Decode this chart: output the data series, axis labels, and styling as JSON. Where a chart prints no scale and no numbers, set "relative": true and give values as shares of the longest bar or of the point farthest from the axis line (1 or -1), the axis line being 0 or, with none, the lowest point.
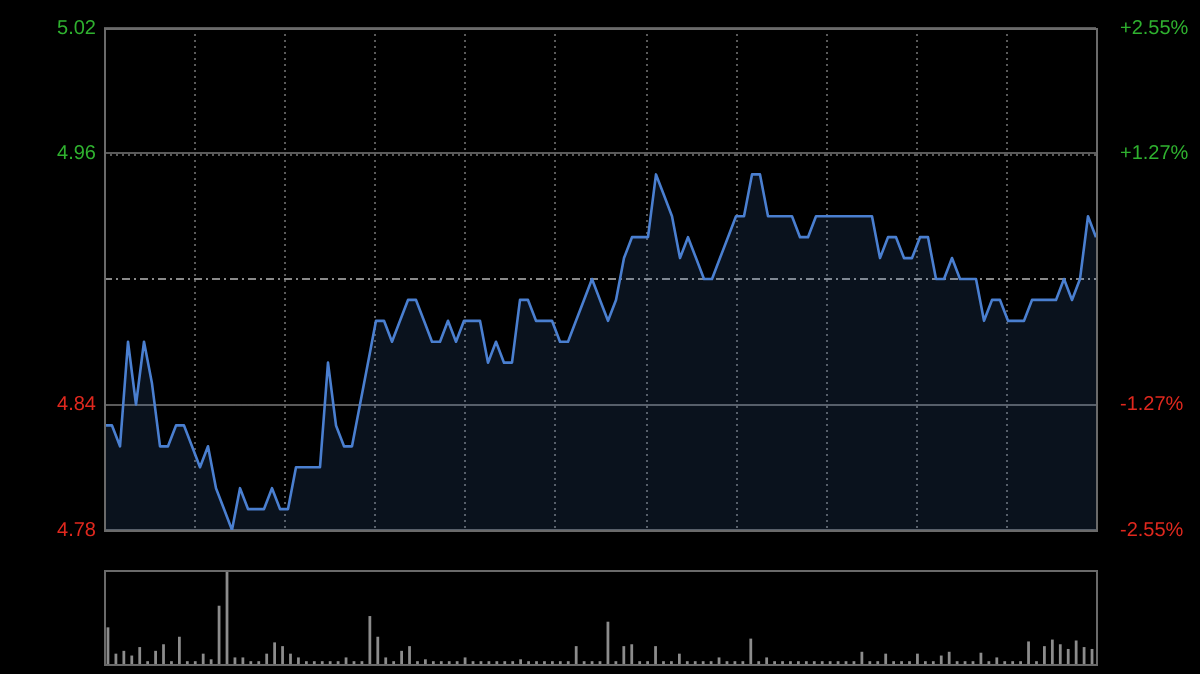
{
  "chart_data": [
    {
      "type": "area",
      "categories": [
        null,
        null,
        null,
        null,
        null,
        null,
        null,
        null,
        null,
        null,
        null,
        null,
        null,
        null,
        null,
        null,
        null,
        null,
        null,
        null,
        null,
        null,
        null,
        null,
        null,
        null,
        null,
        null,
        null,
        null,
        null,
        null,
        null,
        null,
        null,
        null,
        null,
        null,
        null,
        null,
        null,
        null,
        null,
        null,
        null,
        null,
        null,
        null,
        null,
        null,
        null,
        null,
        null,
        null,
        null,
        null,
        null,
        null,
        null,
        null,
        null,
        null,
        null,
        null,
        null,
        null,
        null,
        null,
        null,
        null,
        null,
        null,
        null,
        null,
        null,
        null,
        null,
        null,
        null,
        null,
        null,
        null,
        null,
        null,
        null,
        null,
        null,
        null,
        null,
        null,
        null,
        null,
        null,
        null,
        null,
        null,
        null,
        null,
        null,
        null,
        null,
        null,
        null,
        null,
        null,
        null,
        null,
        null,
        null,
        null,
        null,
        null,
        null,
        null,
        null,
        null,
        null,
        null,
        null,
        null,
        null,
        null,
        null,
        null,
        null
      ],
      "series": [
        {
          "color": "#4a7fd0",
          "values": [
            4.83,
            4.83,
            4.82,
            4.87,
            4.84,
            4.87,
            4.85,
            4.82,
            4.82,
            4.83,
            4.83,
            4.82,
            4.81,
            4.82,
            4.8,
            4.79,
            4.78,
            4.8,
            4.79,
            4.79,
            4.79,
            4.8,
            4.79,
            4.79,
            4.81,
            4.81,
            4.81,
            4.81,
            4.86,
            4.83,
            4.82,
            4.82,
            4.84,
            4.86,
            4.88,
            4.88,
            4.87,
            4.88,
            4.89,
            4.89,
            4.88,
            4.87,
            4.87,
            4.88,
            4.87,
            4.88,
            4.88,
            4.88,
            4.86,
            4.87,
            4.86,
            4.86,
            4.89,
            4.89,
            4.88,
            4.88,
            4.88,
            4.87,
            4.87,
            4.88,
            4.89,
            4.9,
            4.89,
            4.88,
            4.89,
            4.91,
            4.92,
            4.92,
            4.92,
            4.95,
            4.94,
            4.93,
            4.91,
            4.92,
            4.91,
            4.9,
            4.9,
            4.91,
            4.92,
            4.93,
            4.93,
            4.95,
            4.95,
            4.93,
            4.93,
            4.93,
            4.93,
            4.92,
            4.92,
            4.93,
            4.93,
            4.93,
            4.93,
            4.93,
            4.93,
            4.93,
            4.93,
            4.91,
            4.92,
            4.92,
            4.91,
            4.91,
            4.92,
            4.92,
            4.9,
            4.9,
            4.91,
            4.9,
            4.9,
            4.9,
            4.88,
            4.89,
            4.89,
            4.88,
            4.88,
            4.88,
            4.89,
            4.89,
            4.89,
            4.89,
            4.9,
            4.89,
            4.9,
            4.93,
            4.92
          ]
        }
      ],
      "ylim": [
        4.78,
        5.02
      ],
      "yticks": [
        4.78,
        4.84,
        4.96,
        5.02
      ],
      "y2lim": [
        -2.55,
        2.55
      ],
      "y2ticks": [
        {
          "value": -2.55,
          "label": "-2.55%"
        },
        {
          "value": -1.27,
          "label": "-1.27%"
        },
        {
          "value": 1.27,
          "label": "+1.27%"
        },
        {
          "value": 2.55,
          "label": "+2.55%"
        }
      ],
      "ref_lines": [
        {
          "axis": "y",
          "value": 4.9,
          "line_style": "dashed"
        }
      ],
      "grid": true
    },
    {
      "type": "bar",
      "relative": true,
      "categories": [
        null,
        null,
        null,
        null,
        null,
        null,
        null,
        null,
        null,
        null,
        null,
        null,
        null,
        null,
        null,
        null,
        null,
        null,
        null,
        null,
        null,
        null,
        null,
        null,
        null,
        null,
        null,
        null,
        null,
        null,
        null,
        null,
        null,
        null,
        null,
        null,
        null,
        null,
        null,
        null,
        null,
        null,
        null,
        null,
        null,
        null,
        null,
        null,
        null,
        null,
        null,
        null,
        null,
        null,
        null,
        null,
        null,
        null,
        null,
        null,
        null,
        null,
        null,
        null,
        null,
        null,
        null,
        null,
        null,
        null,
        null,
        null,
        null,
        null,
        null,
        null,
        null,
        null,
        null,
        null,
        null,
        null,
        null,
        null,
        null,
        null,
        null,
        null,
        null,
        null,
        null,
        null,
        null,
        null,
        null,
        null,
        null,
        null,
        null,
        null,
        null,
        null,
        null,
        null,
        null,
        null,
        null,
        null,
        null,
        null,
        null,
        null,
        null,
        null,
        null,
        null,
        null,
        null,
        null,
        null,
        null,
        null,
        null,
        null,
        null
      ],
      "series": [
        {
          "color": "#8c8c8c",
          "values": [
            0.39,
            0.11,
            0.14,
            0.09,
            0.18,
            0.03,
            0.14,
            0.21,
            0.03,
            0.29,
            0.03,
            0.03,
            0.11,
            0.05,
            0.62,
            1,
            0.07,
            0.07,
            0.03,
            0.03,
            0.11,
            0.23,
            0.19,
            0.11,
            0.07,
            0.03,
            0.03,
            0.03,
            0.03,
            0.03,
            0.07,
            0.03,
            0.03,
            0.51,
            0.29,
            0.07,
            0.03,
            0.14,
            0.19,
            0.03,
            0.05,
            0.03,
            0.03,
            0.03,
            0.03,
            0.07,
            0.03,
            0.03,
            0.03,
            0.03,
            0.03,
            0.03,
            0.05,
            0.03,
            0.03,
            0.03,
            0.03,
            0.03,
            0.03,
            0.19,
            0.03,
            0.03,
            0.03,
            0.45,
            0.03,
            0.19,
            0.21,
            0.03,
            0.03,
            0.19,
            0.03,
            0.03,
            0.11,
            0.03,
            0.03,
            0.03,
            0.03,
            0.07,
            0.03,
            0.03,
            0.03,
            0.27,
            0.03,
            0.07,
            0.03,
            0.03,
            0.03,
            0.03,
            0.03,
            0.03,
            0.03,
            0.03,
            0.03,
            0.03,
            0.03,
            0.13,
            0.03,
            0.03,
            0.11,
            0.03,
            0.03,
            0.03,
            0.11,
            0.03,
            0.03,
            0.09,
            0.13,
            0.03,
            0.03,
            0.03,
            0.12,
            0.03,
            0.07,
            0.03,
            0.03,
            0.03,
            0.24,
            0.03,
            0.19,
            0.26,
            0.21,
            0.16,
            0.25,
            0.18,
            0.16
          ]
        }
      ]
    }
  ]
}
